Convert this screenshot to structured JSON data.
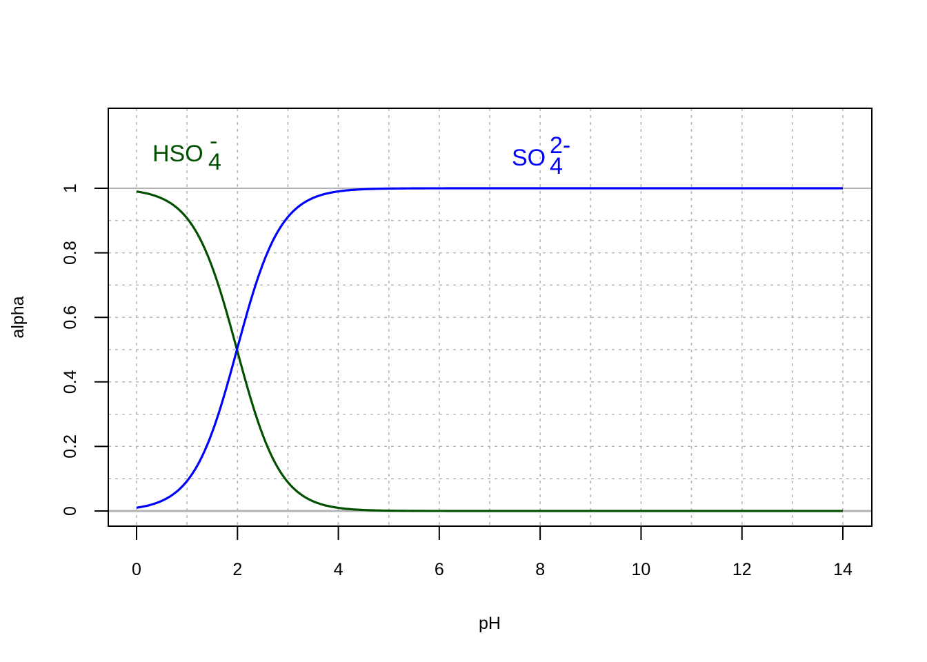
{
  "chart_data": {
    "type": "line",
    "title": "",
    "xlabel": "pH",
    "ylabel": "alpha",
    "xlim": [
      0,
      14
    ],
    "ylim": [
      0,
      1
    ],
    "x_ticks": [
      "0",
      "2",
      "4",
      "6",
      "8",
      "10",
      "12",
      "14"
    ],
    "y_ticks": [
      "0",
      "0.2",
      "0.4",
      "0.6",
      "0.8",
      "1"
    ],
    "grid": true,
    "grid_style": "dashed, x every 1 pH, y every 0.1",
    "reference_lines": [
      0,
      1
    ],
    "pKa": 1.99,
    "series": [
      {
        "name": "HSO4-",
        "label_main": "HSO",
        "label_sub": "4",
        "label_sup": "-",
        "color": "#005000",
        "x": [
          0,
          0.5,
          1,
          1.5,
          2,
          2.5,
          3,
          3.5,
          4,
          5,
          6,
          8,
          10,
          12,
          14
        ],
        "values": [
          0.99,
          0.969,
          0.907,
          0.755,
          0.494,
          0.236,
          0.089,
          0.03,
          0.01,
          0.001,
          0.0,
          0.0,
          0.0,
          0.0,
          0.0
        ]
      },
      {
        "name": "SO4 2-",
        "label_main": "SO",
        "label_sub": "4",
        "label_sup": "2-",
        "color": "#0000ff",
        "x": [
          0,
          0.5,
          1,
          1.5,
          2,
          2.5,
          3,
          3.5,
          4,
          5,
          6,
          8,
          10,
          12,
          14
        ],
        "values": [
          0.01,
          0.031,
          0.093,
          0.245,
          0.506,
          0.764,
          0.911,
          0.97,
          0.99,
          0.999,
          1.0,
          1.0,
          1.0,
          1.0,
          1.0
        ]
      }
    ]
  }
}
